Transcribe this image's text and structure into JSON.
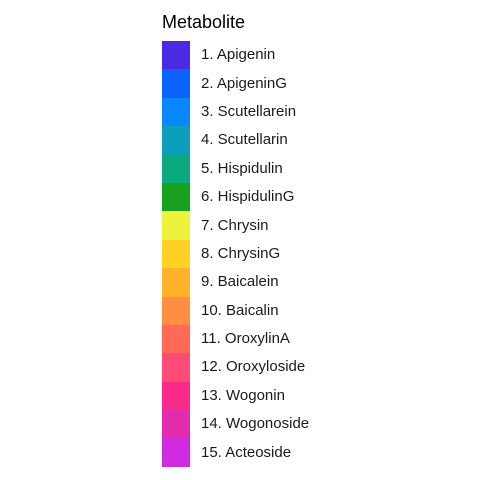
{
  "chart_data": {
    "type": "legend",
    "title": "Metabolite",
    "legend_placement": "center",
    "entries": [
      {
        "label": "1. Apigenin",
        "color": "#4B2BE2"
      },
      {
        "label": "2. ApigeninG",
        "color": "#0B63FF"
      },
      {
        "label": "3. Scutellarein",
        "color": "#0A86FF"
      },
      {
        "label": "4. Scutellarin",
        "color": "#0C9FBC"
      },
      {
        "label": "5. Hispidulin",
        "color": "#0AAA7E"
      },
      {
        "label": "6. HispidulinG",
        "color": "#18A01F"
      },
      {
        "label": "7. Chrysin",
        "color": "#EEF23B"
      },
      {
        "label": "8. ChrysinG",
        "color": "#FFD124"
      },
      {
        "label": "9. Baicalein",
        "color": "#FFB22A"
      },
      {
        "label": "10. Baicalin",
        "color": "#FF8E42"
      },
      {
        "label": "11. OroxylinA",
        "color": "#FF6B58"
      },
      {
        "label": "12. Oroxyloside",
        "color": "#FF4C76"
      },
      {
        "label": "13. Wogonin",
        "color": "#FB2B8B"
      },
      {
        "label": "14. Wogonoside",
        "color": "#E22CAE"
      },
      {
        "label": "15. Acteoside",
        "color": "#CF2BE3"
      }
    ]
  }
}
